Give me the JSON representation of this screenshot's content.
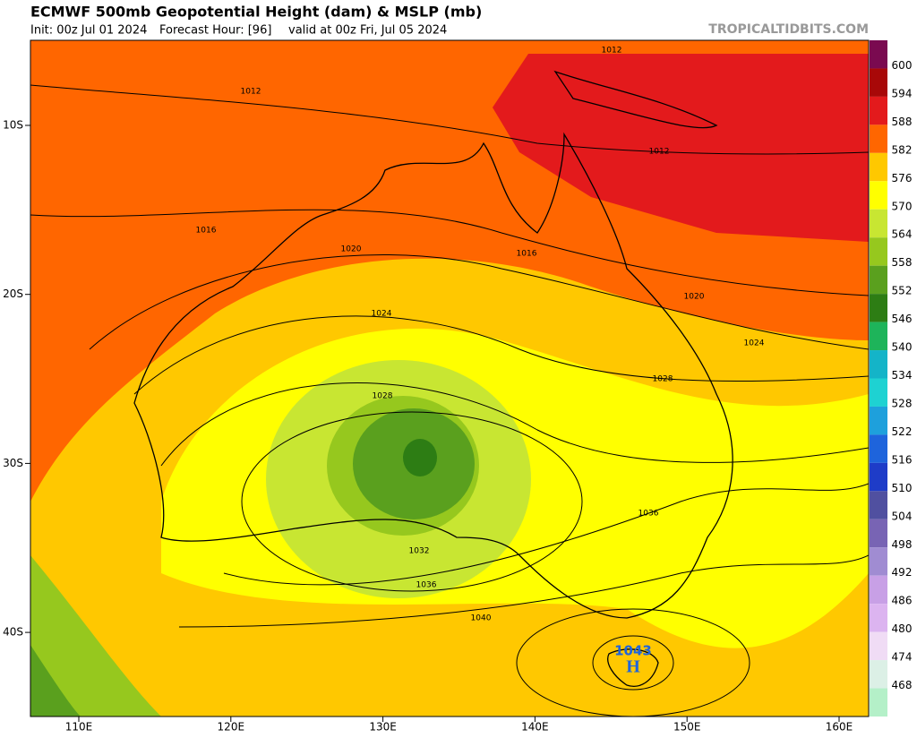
{
  "header": {
    "title": "ECMWF 500mb Geopotential Height (dam) & MSLP (mb)",
    "init": "Init: 00z Jul 01 2024",
    "forecast_hour": "Forecast Hour: [96]",
    "valid": "valid at 00z Fri, Jul 05 2024",
    "credit": "TROPICALTIDBITS.COM"
  },
  "axes": {
    "lat_labels": [
      "10S",
      "20S",
      "30S",
      "40S"
    ],
    "lon_labels": [
      "110E",
      "120E",
      "130E",
      "140E",
      "150E",
      "160E"
    ]
  },
  "colorbar": {
    "levels": [
      600,
      594,
      588,
      582,
      576,
      570,
      564,
      558,
      552,
      546,
      540,
      534,
      528,
      522,
      516,
      510,
      504,
      498,
      492,
      486,
      480,
      474,
      468
    ],
    "colors": [
      "#7a0a50",
      "#a80808",
      "#e31a1c",
      "#ff6600",
      "#ffc800",
      "#ffff00",
      "#c8e632",
      "#96c81e",
      "#5aa01e",
      "#2d7d14",
      "#1eb45a",
      "#14b4c8",
      "#1ed2d2",
      "#1ea0dc",
      "#1e64dc",
      "#1e3cc8",
      "#5050a0",
      "#7864b4",
      "#a08cd2",
      "#c8a0e6",
      "#dcb4f0",
      "#f0dcf5",
      "#dcf0e6",
      "#b4f0c8"
    ]
  },
  "isobar_labels": [
    "1012",
    "1012",
    "1012",
    "1016",
    "1016",
    "1020",
    "1020",
    "1024",
    "1024",
    "1028",
    "1028",
    "1032",
    "1036",
    "1036",
    "1040"
  ],
  "high": {
    "letter": "H",
    "pressure": "1043"
  }
}
